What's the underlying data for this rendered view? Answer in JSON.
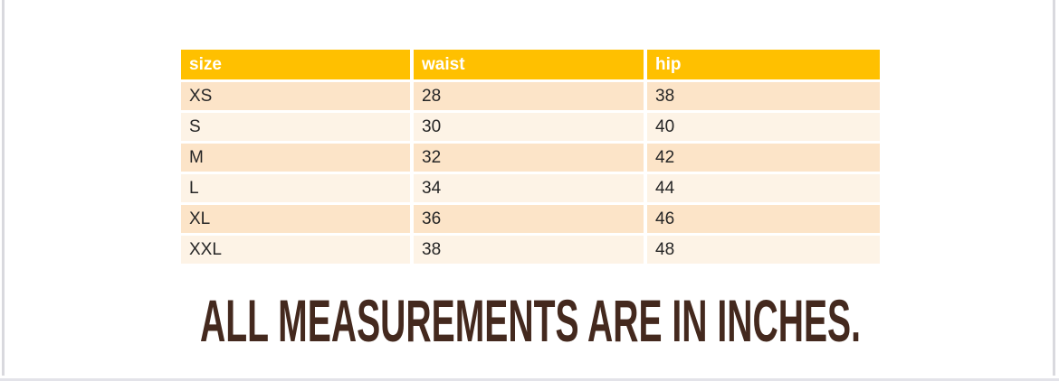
{
  "table": {
    "columns": [
      {
        "key": "size",
        "label": "size"
      },
      {
        "key": "waist",
        "label": "waist"
      },
      {
        "key": "hip",
        "label": "hip"
      }
    ],
    "rows": [
      {
        "size": "XS",
        "waist": "28",
        "hip": "38"
      },
      {
        "size": "S",
        "waist": "30",
        "hip": "40"
      },
      {
        "size": "M",
        "waist": "32",
        "hip": "42"
      },
      {
        "size": "L",
        "waist": "34",
        "hip": "44"
      },
      {
        "size": "XL",
        "waist": "36",
        "hip": "46"
      },
      {
        "size": "XXL",
        "waist": "38",
        "hip": "48"
      }
    ]
  },
  "footer": {
    "note": "ALL MEASUREMENTS ARE IN INCHES."
  },
  "colors": {
    "header_bg": "#FFC000",
    "header_text": "#FFFFFF",
    "row_band_dark": "#FCE4C8",
    "row_band_light": "#FDF3E6",
    "body_text": "#262626",
    "note_text": "#44291E",
    "page_edge": "#D9D9DE"
  },
  "chart_data": {
    "type": "table",
    "title": "ALL MEASUREMENTS ARE IN INCHES.",
    "columns": [
      "size",
      "waist",
      "hip"
    ],
    "rows": [
      [
        "XS",
        28,
        38
      ],
      [
        "S",
        30,
        40
      ],
      [
        "M",
        32,
        42
      ],
      [
        "L",
        34,
        44
      ],
      [
        "XL",
        36,
        46
      ],
      [
        "XXL",
        38,
        48
      ]
    ],
    "units": "inches",
    "layout": {
      "banded_rows": true,
      "header_fill": "#FFC000",
      "legend": "none",
      "grid": "off"
    }
  }
}
